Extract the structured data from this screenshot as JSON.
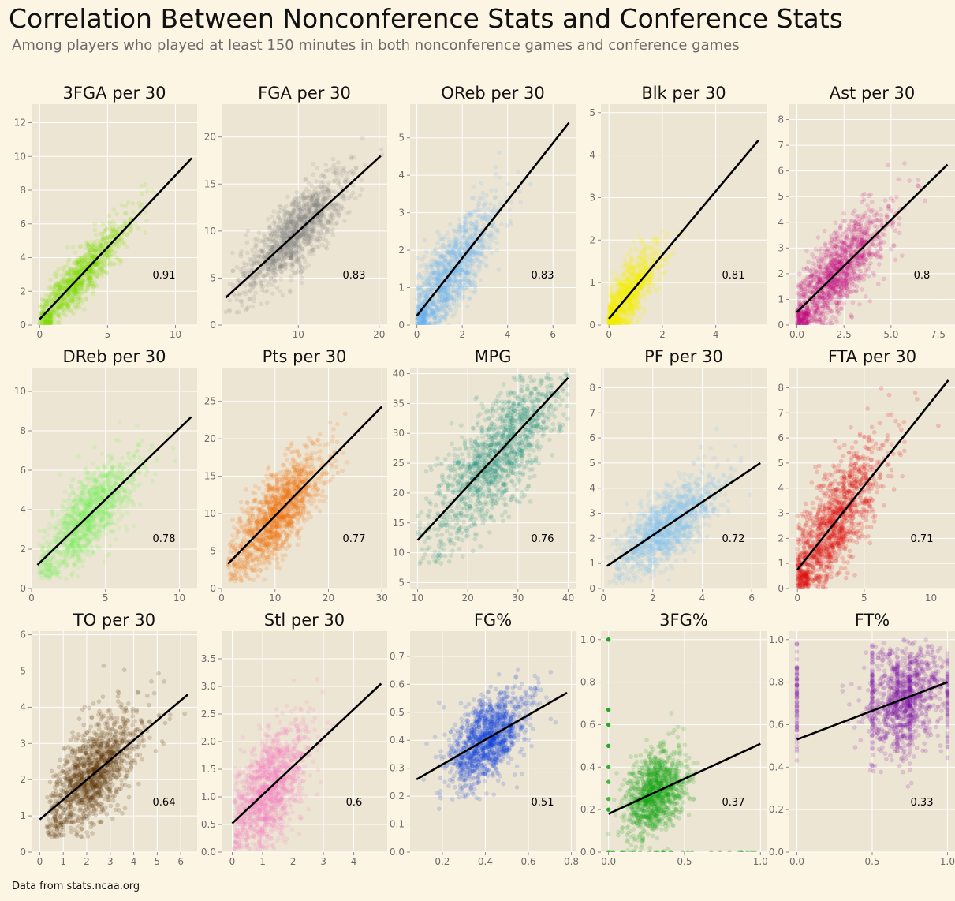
{
  "title": "Correlation Between Nonconference Stats and Conference Stats",
  "subtitle": "Among players who played at least 150 minutes in both nonconference games and conference games",
  "footnote": "Data from stats.ncaa.org",
  "chart_data": [
    {
      "type": "scatter",
      "title": "3FGA per 30",
      "color": "#7fe000",
      "r": 0.91,
      "xlim": [
        -0.6,
        11.6
      ],
      "ylim": [
        0,
        13.1
      ],
      "xticks": [
        0,
        5,
        10
      ],
      "yticks": [
        0,
        2,
        4,
        6,
        8,
        10,
        12
      ],
      "xticklabels": [
        "0",
        "5",
        "10"
      ],
      "yticklabels": [
        "0",
        "2",
        "4",
        "6",
        "8",
        "10",
        "12"
      ],
      "line": [
        [
          0,
          0.35
        ],
        [
          11.2,
          9.9
        ]
      ],
      "center": [
        2.8,
        2.6
      ],
      "spread": [
        1.8,
        1.6
      ],
      "corr": 0.91,
      "clip": [
        0,
        0,
        11.5,
        12.5
      ],
      "n": 1100,
      "opacity": 0.15,
      "grid": true
    },
    {
      "type": "scatter",
      "title": "FGA per 30",
      "color": "#808080",
      "r": 0.83,
      "xlim": [
        0.5,
        21
      ],
      "ylim": [
        0,
        23.5
      ],
      "xticks": [
        10,
        20
      ],
      "yticks": [
        0,
        5,
        10,
        15,
        20
      ],
      "xticklabels": [
        "10",
        "20"
      ],
      "yticklabels": [
        "0",
        "5",
        "10",
        "15",
        "20"
      ],
      "line": [
        [
          1,
          2.9
        ],
        [
          20.2,
          18
        ]
      ],
      "center": [
        9.5,
        9.5
      ],
      "spread": [
        3.0,
        3.0
      ],
      "corr": 0.83,
      "clip": [
        1,
        1,
        20.5,
        22
      ],
      "n": 1300,
      "opacity": 0.15,
      "grid": true
    },
    {
      "type": "scatter",
      "title": "OReb per 30",
      "color": "#6ab4f2",
      "r": 0.83,
      "xlim": [
        -0.3,
        7.0
      ],
      "ylim": [
        0,
        5.9
      ],
      "xticks": [
        0,
        2,
        4,
        6
      ],
      "yticks": [
        0,
        1,
        2,
        3,
        4,
        5
      ],
      "xticklabels": [
        "0",
        "2",
        "4",
        "6"
      ],
      "yticklabels": [
        "0",
        "1",
        "2",
        "3",
        "4",
        "5"
      ],
      "line": [
        [
          0,
          0.25
        ],
        [
          6.7,
          5.4
        ]
      ],
      "center": [
        1.4,
        1.4
      ],
      "spread": [
        1.0,
        0.9
      ],
      "corr": 0.83,
      "clip": [
        0,
        0,
        6.8,
        5.7
      ],
      "n": 1300,
      "opacity": 0.15,
      "grid": true
    },
    {
      "type": "scatter",
      "title": "Blk per 30",
      "color": "#f5f000",
      "r": 0.81,
      "xlim": [
        -0.3,
        5.9
      ],
      "ylim": [
        0,
        5.2
      ],
      "xticks": [
        0,
        2,
        4
      ],
      "yticks": [
        0,
        1,
        2,
        3,
        4,
        5
      ],
      "xticklabels": [
        "0",
        "2",
        "4"
      ],
      "yticklabels": [
        "0",
        "1",
        "2",
        "3",
        "4",
        "5"
      ],
      "line": [
        [
          0,
          0.15
        ],
        [
          5.6,
          4.35
        ]
      ],
      "center": [
        0.6,
        0.6
      ],
      "spread": [
        0.6,
        0.55
      ],
      "corr": 0.81,
      "clip": [
        0,
        0,
        5.5,
        5.0
      ],
      "n": 1300,
      "opacity": 0.15,
      "grid": true
    },
    {
      "type": "scatter",
      "title": "Ast per 30",
      "color": "#c0007f",
      "r": 0.8,
      "xlim": [
        -0.4,
        8.4
      ],
      "ylim": [
        0,
        8.6
      ],
      "xticks": [
        0,
        2.5,
        5,
        7.5
      ],
      "yticks": [
        0,
        1,
        2,
        3,
        4,
        5,
        6,
        7,
        8
      ],
      "xticklabels": [
        "0.0",
        "2.5",
        "5.0",
        "7.5"
      ],
      "yticklabels": [
        "0",
        "1",
        "2",
        "3",
        "4",
        "5",
        "6",
        "7",
        "8"
      ],
      "line": [
        [
          0,
          0.5
        ],
        [
          8,
          6.25
        ]
      ],
      "center": [
        2.0,
        1.9
      ],
      "spread": [
        1.3,
        1.2
      ],
      "corr": 0.8,
      "clip": [
        0,
        0,
        8,
        8.3
      ],
      "n": 1300,
      "opacity": 0.15,
      "grid": true
    },
    {
      "type": "scatter",
      "title": "DReb per 30",
      "color": "#7cf25e",
      "r": 0.78,
      "xlim": [
        0,
        11.2
      ],
      "ylim": [
        0,
        11.2
      ],
      "xticks": [
        0,
        5,
        10
      ],
      "yticks": [
        0,
        2,
        4,
        6,
        8,
        10
      ],
      "xticklabels": [
        "0",
        "5",
        "10"
      ],
      "yticklabels": [
        "0",
        "2",
        "4",
        "6",
        "8",
        "10"
      ],
      "line": [
        [
          0.4,
          1.2
        ],
        [
          10.8,
          8.7
        ]
      ],
      "center": [
        3.8,
        3.6
      ],
      "spread": [
        1.6,
        1.5
      ],
      "corr": 0.78,
      "clip": [
        0.5,
        0.5,
        11,
        10.8
      ],
      "n": 1300,
      "opacity": 0.15,
      "grid": true
    },
    {
      "type": "scatter",
      "title": "Pts per 30",
      "color": "#f26b00",
      "r": 0.77,
      "xlim": [
        0,
        31
      ],
      "ylim": [
        0,
        29.5
      ],
      "xticks": [
        0,
        10,
        20,
        30
      ],
      "yticks": [
        0,
        5,
        10,
        15,
        20,
        25
      ],
      "xticklabels": [
        "0",
        "10",
        "20",
        "30"
      ],
      "yticklabels": [
        "0",
        "5",
        "10",
        "15",
        "20",
        "25"
      ],
      "line": [
        [
          1.2,
          3.3
        ],
        [
          30,
          24.3
        ]
      ],
      "center": [
        10.5,
        10.0
      ],
      "spread": [
        4.0,
        3.8
      ],
      "corr": 0.77,
      "clip": [
        1,
        1,
        30,
        28
      ],
      "n": 1400,
      "opacity": 0.15,
      "grid": true
    },
    {
      "type": "scatter",
      "title": "MPG",
      "color": "#0f8a7a",
      "r": 0.76,
      "xlim": [
        8.5,
        41.5
      ],
      "ylim": [
        4,
        41
      ],
      "xticks": [
        10,
        20,
        30,
        40
      ],
      "yticks": [
        5,
        10,
        15,
        20,
        25,
        30,
        35,
        40
      ],
      "xticklabels": [
        "10",
        "20",
        "30",
        "40"
      ],
      "yticklabels": [
        "5",
        "10",
        "15",
        "20",
        "25",
        "30",
        "35",
        "40"
      ],
      "line": [
        [
          10,
          12.1
        ],
        [
          40,
          39.3
        ]
      ],
      "center": [
        26,
        27
      ],
      "spread": [
        6.5,
        6.5
      ],
      "corr": 0.76,
      "clip": [
        10,
        8,
        40,
        40
      ],
      "n": 1400,
      "opacity": 0.15,
      "grid": true
    },
    {
      "type": "scatter",
      "title": "PF per 30",
      "color": "#7fc1f0",
      "r": 0.72,
      "xlim": [
        -0.1,
        6.6
      ],
      "ylim": [
        0,
        8.8
      ],
      "xticks": [
        0,
        2,
        4,
        6
      ],
      "yticks": [
        0,
        1,
        2,
        3,
        4,
        5,
        6,
        7,
        8
      ],
      "xticklabels": [
        "0",
        "2",
        "4",
        "6"
      ],
      "yticklabels": [
        "0",
        "1",
        "2",
        "3",
        "4",
        "5",
        "6",
        "7",
        "8"
      ],
      "line": [
        [
          0.15,
          0.9
        ],
        [
          6.35,
          5
        ]
      ],
      "center": [
        2.6,
        2.5
      ],
      "spread": [
        1.0,
        0.9
      ],
      "corr": 0.72,
      "clip": [
        0.2,
        0.2,
        6.4,
        8.5
      ],
      "n": 1300,
      "opacity": 0.15,
      "grid": true
    },
    {
      "type": "scatter",
      "title": "FTA per 30",
      "color": "#e01010",
      "r": 0.71,
      "xlim": [
        -0.6,
        11.8
      ],
      "ylim": [
        0,
        8.8
      ],
      "xticks": [
        0,
        5,
        10
      ],
      "yticks": [
        0,
        1,
        2,
        3,
        4,
        5,
        6,
        7,
        8
      ],
      "xticklabels": [
        "0",
        "5",
        "10"
      ],
      "yticklabels": [
        "0",
        "1",
        "2",
        "3",
        "4",
        "5",
        "6",
        "7",
        "8"
      ],
      "line": [
        [
          0,
          0.75
        ],
        [
          11.3,
          8.3
        ]
      ],
      "center": [
        2.7,
        2.3
      ],
      "spread": [
        1.7,
        1.3
      ],
      "corr": 0.71,
      "clip": [
        0,
        0,
        11.5,
        8.6
      ],
      "n": 1300,
      "opacity": 0.18,
      "grid": true
    },
    {
      "type": "scatter",
      "title": "TO per 30",
      "color": "#5a3200",
      "r": 0.64,
      "xlim": [
        -0.35,
        6.7
      ],
      "ylim": [
        0,
        6.1
      ],
      "xticks": [
        0,
        1,
        2,
        3,
        4,
        5,
        6
      ],
      "yticks": [
        0,
        1,
        2,
        3,
        4,
        5,
        6
      ],
      "xticklabels": [
        "0",
        "1",
        "2",
        "3",
        "4",
        "5",
        "6"
      ],
      "yticklabels": [
        "0",
        "1",
        "2",
        "3",
        "4",
        "5",
        "6"
      ],
      "line": [
        [
          0,
          0.9
        ],
        [
          6.3,
          4.35
        ]
      ],
      "center": [
        2.2,
        2.1
      ],
      "spread": [
        0.95,
        0.75
      ],
      "corr": 0.64,
      "clip": [
        0.3,
        0.4,
        6.4,
        6.0
      ],
      "n": 1300,
      "opacity": 0.18,
      "grid": true
    },
    {
      "type": "scatter",
      "title": "Stl per 30",
      "color": "#f77bc0",
      "r": 0.6,
      "xlim": [
        -0.35,
        5.1
      ],
      "ylim": [
        0,
        4.0
      ],
      "xticks": [
        0,
        1,
        2,
        3,
        4
      ],
      "yticks": [
        0,
        0.5,
        1.0,
        1.5,
        2.0,
        2.5,
        3.0,
        3.5
      ],
      "xticklabels": [
        "0",
        "1",
        "2",
        "3",
        "4"
      ],
      "yticklabels": [
        "0.0",
        "0.5",
        "1.0",
        "1.5",
        "2.0",
        "2.5",
        "3.0",
        "3.5"
      ],
      "line": [
        [
          0,
          0.52
        ],
        [
          4.9,
          3.05
        ]
      ],
      "center": [
        1.2,
        1.2
      ],
      "spread": [
        0.6,
        0.55
      ],
      "corr": 0.6,
      "clip": [
        0.05,
        0.05,
        5,
        3.9
      ],
      "n": 1300,
      "opacity": 0.15,
      "grid": true
    },
    {
      "type": "scatter",
      "title": "FG%",
      "color": "#0a3adf",
      "r": 0.51,
      "xlim": [
        0.05,
        0.82
      ],
      "ylim": [
        0,
        0.79
      ],
      "xticks": [
        0.2,
        0.4,
        0.6,
        0.8
      ],
      "yticks": [
        0,
        0.1,
        0.2,
        0.3,
        0.4,
        0.5,
        0.6,
        0.7
      ],
      "xticklabels": [
        "0.2",
        "0.4",
        "0.6",
        "0.8"
      ],
      "yticklabels": [
        "0.0",
        "0.1",
        "0.2",
        "0.3",
        "0.4",
        "0.5",
        "0.6",
        "0.7"
      ],
      "line": [
        [
          0.08,
          0.26
        ],
        [
          0.78,
          0.57
        ]
      ],
      "center": [
        0.41,
        0.4
      ],
      "spread": [
        0.085,
        0.075
      ],
      "corr": 0.51,
      "clip": [
        0.1,
        0.1,
        0.78,
        0.76
      ],
      "n": 1300,
      "opacity": 0.15,
      "grid": true
    },
    {
      "type": "scatter",
      "title": "3FG%",
      "color": "#16a616",
      "r": 0.37,
      "xlim": [
        -0.05,
        1.04
      ],
      "ylim": [
        0,
        1.04
      ],
      "xticks": [
        0,
        0.5,
        1.0
      ],
      "yticks": [
        0,
        0.2,
        0.4,
        0.6,
        0.8,
        1.0
      ],
      "xticklabels": [
        "0.0",
        "0.5",
        "1.0"
      ],
      "yticklabels": [
        "0.0",
        "0.2",
        "0.4",
        "0.6",
        "0.8",
        "1.0"
      ],
      "line": [
        [
          0,
          0.18
        ],
        [
          1,
          0.51
        ]
      ],
      "center": [
        0.31,
        0.3
      ],
      "spread": [
        0.09,
        0.09
      ],
      "corr": 0.37,
      "clip": [
        0,
        0,
        1,
        1
      ],
      "n": 1200,
      "opacity": 0.17,
      "grid": true,
      "edge_points": true
    },
    {
      "type": "scatter",
      "title": "FT%",
      "color": "#7a0fa5",
      "r": 0.33,
      "xlim": [
        -0.05,
        1.05
      ],
      "ylim": [
        0,
        1.04
      ],
      "xticks": [
        0,
        0.5,
        1.0
      ],
      "yticks": [
        0,
        0.2,
        0.4,
        0.6,
        0.8,
        1.0
      ],
      "xticklabels": [
        "0.0",
        "0.5",
        "1.0"
      ],
      "yticklabels": [
        "0.0",
        "0.2",
        "0.4",
        "0.6",
        "0.8",
        "1.0"
      ],
      "line": [
        [
          0,
          0.53
        ],
        [
          1,
          0.8
        ]
      ],
      "center": [
        0.71,
        0.71
      ],
      "spread": [
        0.12,
        0.12
      ],
      "corr": 0.33,
      "clip": [
        0,
        0,
        1,
        1
      ],
      "n": 1300,
      "opacity": 0.17,
      "grid": true,
      "ft_lines": true
    }
  ]
}
